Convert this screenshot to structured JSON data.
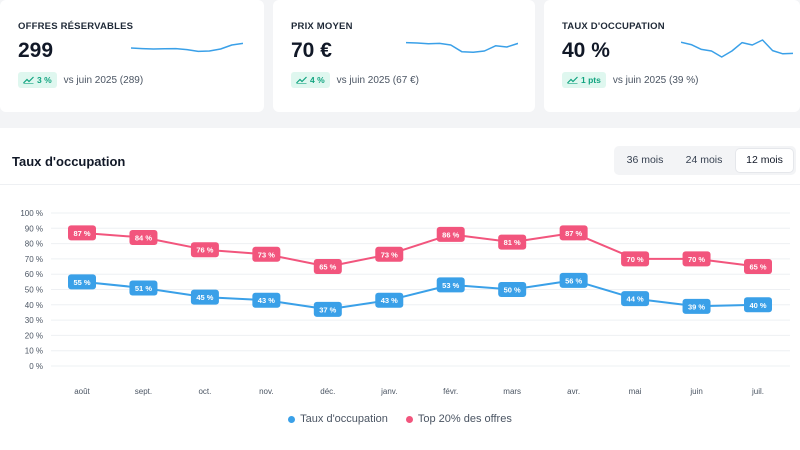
{
  "kpis": [
    {
      "label": "OFFRES RÉSERVABLES",
      "value": "299",
      "badge": "3 %",
      "compare": "vs juin 2025 (289)",
      "sparkline": [
        0.55,
        0.52,
        0.5,
        0.51,
        0.52,
        0.47,
        0.38,
        0.4,
        0.5,
        0.7,
        0.78
      ]
    },
    {
      "label": "PRIX MOYEN",
      "value": "70 €",
      "badge": "4 %",
      "compare": "vs juin 2025 (67 €)",
      "sparkline": [
        0.82,
        0.8,
        0.76,
        0.78,
        0.7,
        0.36,
        0.34,
        0.4,
        0.66,
        0.6,
        0.78
      ]
    },
    {
      "label": "TAUX D'OCCUPATION",
      "value": "40 %",
      "badge": "1 pts",
      "compare": "vs juin 2025 (39 %)",
      "sparkline": [
        0.84,
        0.72,
        0.48,
        0.4,
        0.1,
        0.4,
        0.82,
        0.7,
        0.95,
        0.42,
        0.26,
        0.28
      ]
    }
  ],
  "chart": {
    "title": "Taux d'occupation",
    "ranges": [
      "36 mois",
      "24 mois",
      "12 mois"
    ],
    "active_range": "12 mois"
  },
  "colors": {
    "series_blue": "#3aa0e8",
    "series_pink": "#f2557d",
    "badge_text": "#10a37f",
    "spark": "#3aa0e8"
  },
  "chart_data": {
    "type": "line",
    "title": "Taux d'occupation",
    "categories": [
      "août",
      "sept.",
      "oct.",
      "nov.",
      "déc.",
      "janv.",
      "févr.",
      "mars",
      "avr.",
      "mai",
      "juin",
      "juil."
    ],
    "series": [
      {
        "name": "Taux d'occupation",
        "values": [
          55,
          51,
          45,
          43,
          37,
          43,
          53,
          50,
          56,
          44,
          39,
          40
        ],
        "labels": [
          "55 %",
          "51 %",
          "45 %",
          "43 %",
          "37 %",
          "43 %",
          "53 %",
          "50 %",
          "56 %",
          "44 %",
          "39 %",
          "40 %"
        ]
      },
      {
        "name": "Top 20% des offres",
        "values": [
          87,
          84,
          76,
          73,
          65,
          73,
          86,
          81,
          87,
          70,
          70,
          65
        ],
        "labels": [
          "87 %",
          "84 %",
          "76 %",
          "73 %",
          "65 %",
          "73 %",
          "86 %",
          "81 %",
          "87 %",
          "70 %",
          "70 %",
          "65 %"
        ]
      }
    ],
    "yticks": [
      "0 %",
      "10 %",
      "20 %",
      "30 %",
      "40 %",
      "50 %",
      "60 %",
      "70 %",
      "80 %",
      "90 %",
      "100 %"
    ],
    "ylim": [
      0,
      100
    ],
    "grid": true,
    "legend": "bottom-center"
  }
}
